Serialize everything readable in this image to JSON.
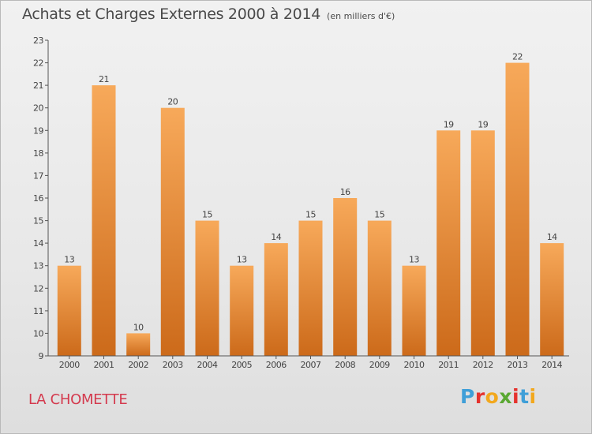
{
  "header": {
    "title": "Achats et Charges Externes 2000 à 2014",
    "subtitle": "(en milliers d'€)"
  },
  "place_name": "LA CHOMETTE",
  "logo": {
    "letters": [
      "P",
      "r",
      "o",
      "x",
      "i",
      "t",
      "i"
    ],
    "colors": [
      "#3f9fd8",
      "#e5322d",
      "#f2a81d",
      "#5aa832",
      "#e5322d",
      "#3f9fd8",
      "#f2a81d"
    ]
  },
  "colors": {
    "bar_light": "#f7a95a",
    "bar_dark": "#cc6a1a",
    "axis": "#555555",
    "place": "#d43a4e"
  },
  "chart_data": {
    "type": "bar",
    "title": "Achats et Charges Externes 2000 à 2014",
    "subtitle": "(en milliers d'€)",
    "categories": [
      "2000",
      "2001",
      "2002",
      "2003",
      "2004",
      "2005",
      "2006",
      "2007",
      "2008",
      "2009",
      "2010",
      "2011",
      "2012",
      "2013",
      "2014"
    ],
    "values": [
      13,
      21,
      10,
      20,
      15,
      13,
      14,
      15,
      16,
      15,
      13,
      19,
      19,
      22,
      14
    ],
    "ylim": [
      9,
      23
    ],
    "yticks": [
      "9",
      "10",
      "11",
      "12",
      "13",
      "14",
      "15",
      "16",
      "17",
      "18",
      "19",
      "20",
      "21",
      "22",
      "23"
    ],
    "xlabel": "",
    "ylabel": "",
    "grid": false,
    "legend": "none"
  }
}
